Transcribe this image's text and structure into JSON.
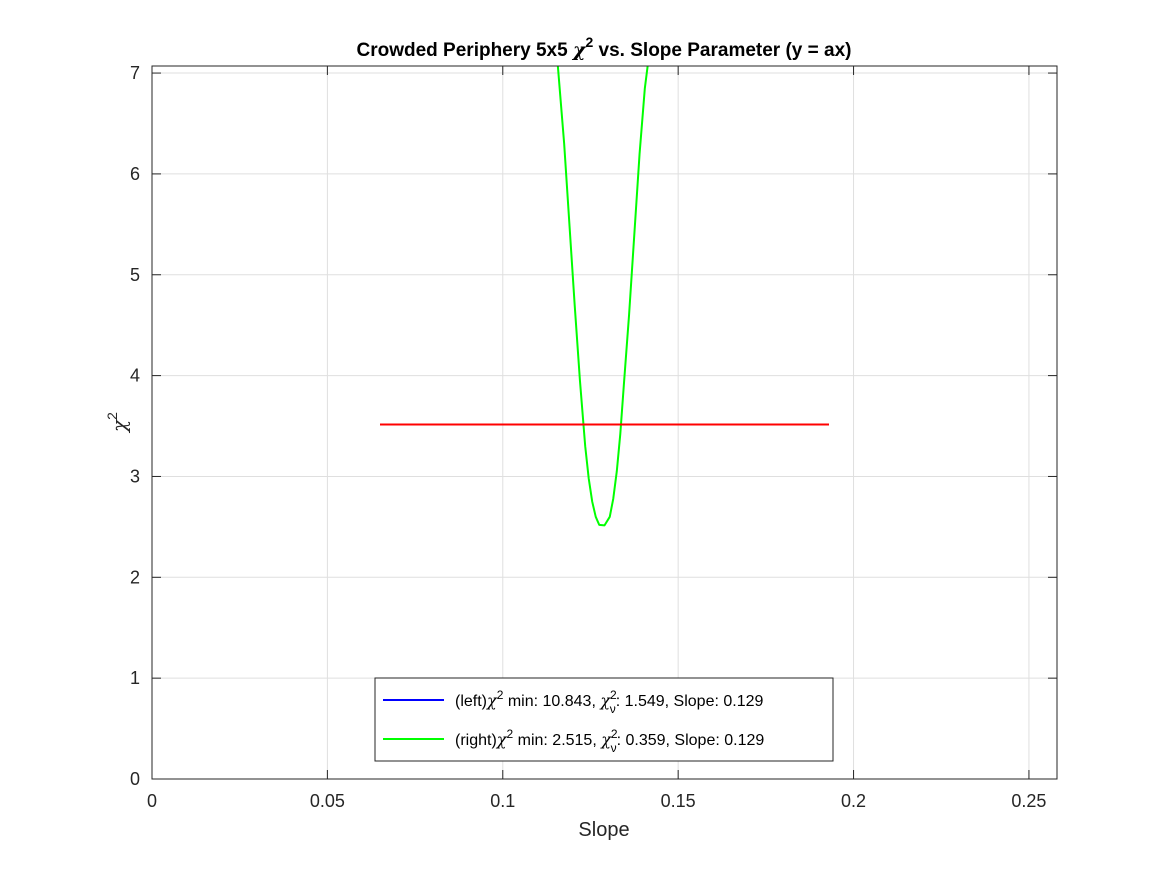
{
  "chart_data": {
    "type": "line",
    "title": {
      "prefix": "Crowded Periphery 5x5 ",
      "symbol": "χ",
      "exponent": "2",
      "suffix": " vs. Slope Parameter (y = ax)"
    },
    "xlabel": "Slope",
    "ylabel": {
      "symbol": "χ",
      "exponent": "2"
    },
    "xlim": [
      0,
      0.258
    ],
    "ylim": [
      0,
      7.07
    ],
    "xticks": [
      0,
      0.05,
      0.1,
      0.15,
      0.2,
      0.25
    ],
    "xtick_labels": [
      "0",
      "0.05",
      "0.1",
      "0.15",
      "0.2",
      "0.25"
    ],
    "yticks": [
      0,
      1,
      2,
      3,
      4,
      5,
      6,
      7
    ],
    "ytick_labels": [
      "0",
      "1",
      "2",
      "3",
      "4",
      "5",
      "6",
      "7"
    ],
    "grid": true,
    "legend_position": "bottom-center",
    "series": [
      {
        "name": {
          "prefix": "(left)",
          "symbol": "χ",
          "exponent": "2",
          "min_text": " min: 10.843, ",
          "nu_symbol": "χ",
          "nu_exp": "2",
          "nu_sub": "ν",
          "rest": ": 1.549, Slope: 0.129"
        },
        "color": "#0000ff",
        "x": [],
        "y": []
      },
      {
        "name": {
          "prefix": "(right)",
          "symbol": "χ",
          "exponent": "2",
          "min_text": " min: 2.515, ",
          "nu_symbol": "χ",
          "nu_exp": "2",
          "nu_sub": "ν",
          "rest": ": 0.359, Slope: 0.129"
        },
        "color": "#00ff00",
        "x": [
          0.1157,
          0.1175,
          0.119,
          0.1205,
          0.122,
          0.1235,
          0.1245,
          0.1255,
          0.1265,
          0.1275,
          0.129,
          0.1305,
          0.1315,
          0.1325,
          0.1335,
          0.1345,
          0.136,
          0.1375,
          0.139,
          0.1405,
          0.1413
        ],
        "y": [
          7.07,
          6.3,
          5.5,
          4.7,
          3.95,
          3.3,
          2.98,
          2.75,
          2.6,
          2.52,
          2.515,
          2.6,
          2.78,
          3.05,
          3.42,
          3.9,
          4.6,
          5.4,
          6.2,
          6.85,
          7.07
        ]
      },
      {
        "color": "#ff0000",
        "x": [
          0.065,
          0.193
        ],
        "y": [
          3.515,
          3.515
        ]
      }
    ]
  }
}
